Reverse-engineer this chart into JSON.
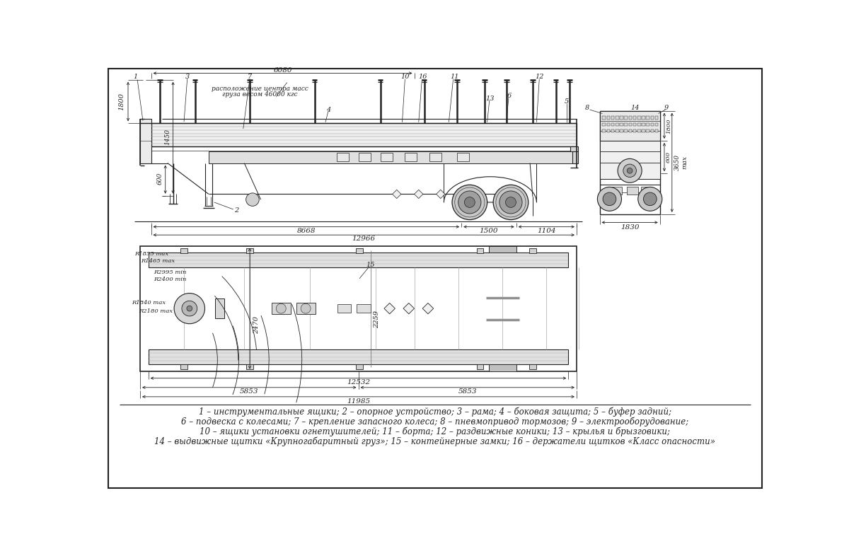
{
  "bg_color": "#ffffff",
  "line_color": "#222222",
  "legend_line1": "1 – инструментальные ящики; 2 – опорное устройство; 3 – рама; 4 – боковая защита; 5 – буфер задний;",
  "legend_line2": "6 – подвеска с колесами; 7 – крепление запасного колеса; 8 – пневмопривод тормозов; 9 – электрооборудование;",
  "legend_line3": "10 – ящики установки огнетушителей; 11 – борта; 12 – раздвижные коники; 13 – крылья и брызговики;",
  "legend_line4": "14 – выдвижные щитки «Крупногабаритный груз»; 15 – контейнерные замки; 16 – держатели щитков «Класс опасности»"
}
